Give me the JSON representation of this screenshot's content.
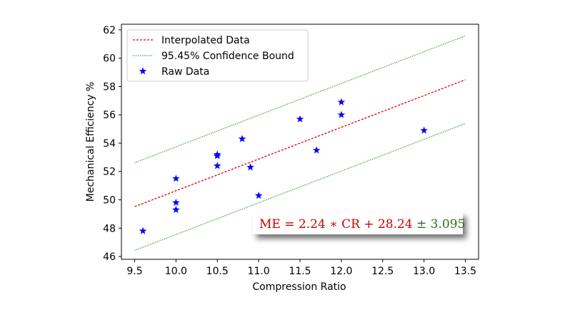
{
  "chart_data": {
    "type": "scatter",
    "xlabel": "Compression Ratio",
    "ylabel": "Mechanical Efficiency %",
    "xlim": [
      9.34,
      13.66
    ],
    "ylim": [
      45.8,
      62.4
    ],
    "xticks": [
      "9.5",
      "10.0",
      "10.5",
      "11.0",
      "11.5",
      "12.0",
      "12.5",
      "13.0",
      "13.5"
    ],
    "yticks": [
      "46",
      "48",
      "50",
      "52",
      "54",
      "56",
      "58",
      "60",
      "62"
    ],
    "grid": false,
    "legend_position": "top-left",
    "series": [
      {
        "name": "Interpolated Data",
        "kind": "line",
        "style": "dashed",
        "color": "#dd0000",
        "x": [
          9.5,
          13.5
        ],
        "y": [
          49.52,
          58.48
        ]
      },
      {
        "name": "95.45% Confidence Bound",
        "kind": "line",
        "style": "dotted",
        "color": "#1a7f1a",
        "x": [
          9.5,
          13.5
        ],
        "y": [
          52.62,
          61.58
        ]
      },
      {
        "name": "",
        "kind": "line",
        "style": "dotted",
        "color": "#1a7f1a",
        "x": [
          9.5,
          13.5
        ],
        "y": [
          46.43,
          55.39
        ]
      },
      {
        "name": "Raw Data",
        "kind": "scatter",
        "marker": "star",
        "color": "#0000ff",
        "x": [
          9.6,
          10.0,
          10.0,
          10.0,
          10.5,
          10.5,
          10.5,
          10.8,
          10.9,
          11.0,
          11.5,
          11.7,
          12.0,
          12.0,
          13.0
        ],
        "y": [
          47.8,
          51.5,
          49.8,
          49.3,
          53.2,
          53.1,
          52.4,
          54.3,
          52.3,
          50.3,
          55.7,
          53.5,
          56.9,
          56.0,
          54.9
        ]
      }
    ],
    "annotation": {
      "parts": [
        {
          "text": "ME = 2.24 ∗ CR + 28.24 ",
          "color": "#cc0000"
        },
        {
          "text": "± 3.095",
          "color": "#2e6b1a"
        }
      ]
    }
  }
}
